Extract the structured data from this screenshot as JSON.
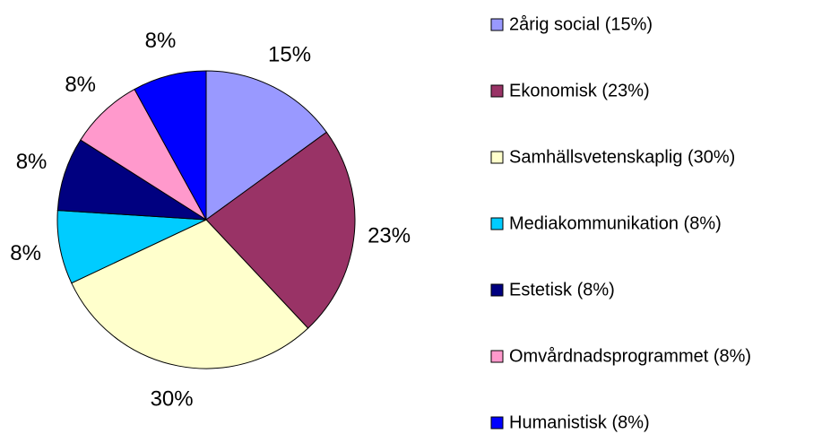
{
  "chart_data": {
    "type": "pie",
    "categories": [
      "2årig social (15%)",
      "Ekonomisk (23%)",
      "Samhällsvetenskaplig (30%)",
      "Mediakommunikation (8%)",
      "Estetisk (8%)",
      "Omvårdnadsprogrammet (8%)",
      "Humanistisk (8%)"
    ],
    "values": [
      15,
      23,
      30,
      8,
      8,
      8,
      8
    ],
    "value_labels": [
      "15%",
      "23%",
      "30%",
      "8%",
      "8%",
      "8%",
      "8%"
    ],
    "colors": [
      "#9999ff",
      "#993366",
      "#ffffcc",
      "#00ccff",
      "#000080",
      "#ff99cc",
      "#0000ff"
    ],
    "legend": "right"
  }
}
